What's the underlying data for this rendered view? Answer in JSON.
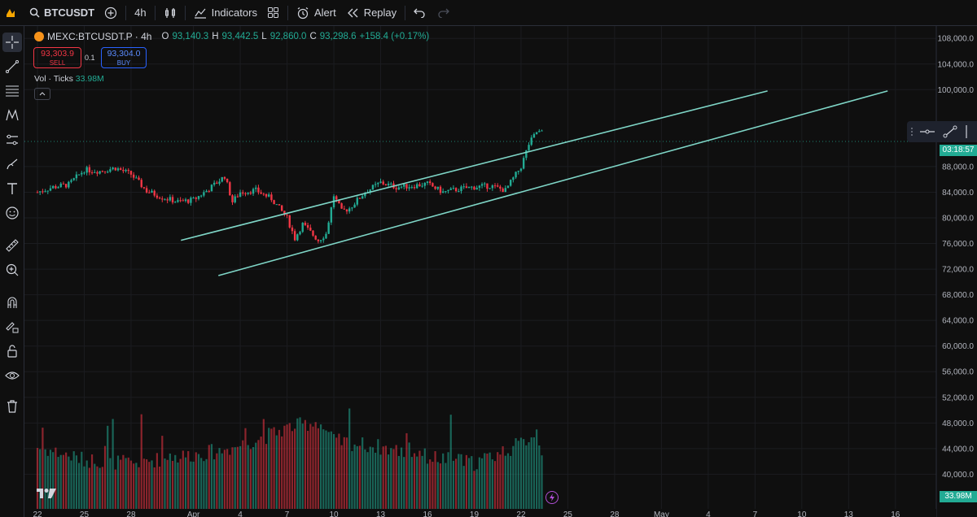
{
  "topbar": {
    "symbol": "BTCUSDT",
    "interval": "4h",
    "indicators_label": "Indicators",
    "alert_label": "Alert",
    "replay_label": "Replay"
  },
  "legend": {
    "title": "MEXC:BTCUSDT.P · 4h",
    "o_label": "O",
    "o_value": "93,140.3",
    "h_label": "H",
    "h_value": "93,442.5",
    "l_label": "L",
    "l_value": "92,860.0",
    "c_label": "C",
    "c_value": "93,298.6",
    "change": "+158.4 (+0.17%)"
  },
  "trade": {
    "sell_price": "93,303.9",
    "sell_label": "SELL",
    "qty": "0.1",
    "buy_price": "93,304.0",
    "buy_label": "BUY"
  },
  "volume": {
    "label": "Vol · Ticks",
    "value": "33.98M"
  },
  "price_axis": {
    "current_badge": "03:18:57",
    "volume_badge": "33.98M",
    "ticks": [
      {
        "label": "108,000.0",
        "price": 108000
      },
      {
        "label": "104,000.0",
        "price": 104000
      },
      {
        "label": "100,000.0",
        "price": 100000
      },
      {
        "label": "88,000.0",
        "price": 88000
      },
      {
        "label": "84,000.0",
        "price": 84000
      },
      {
        "label": "80,000.0",
        "price": 80000
      },
      {
        "label": "76,000.0",
        "price": 76000
      },
      {
        "label": "72,000.0",
        "price": 72000
      },
      {
        "label": "68,000.0",
        "price": 68000
      },
      {
        "label": "64,000.0",
        "price": 64000
      },
      {
        "label": "60,000.0",
        "price": 60000
      },
      {
        "label": "56,000.0",
        "price": 56000
      },
      {
        "label": "52,000.0",
        "price": 52000
      },
      {
        "label": "48,000.0",
        "price": 48000
      },
      {
        "label": "44,000.0",
        "price": 44000
      },
      {
        "label": "40,000.0",
        "price": 40000
      }
    ]
  },
  "time_axis": {
    "labels": [
      {
        "label": "22",
        "day": 0
      },
      {
        "label": "25",
        "day": 3
      },
      {
        "label": "28",
        "day": 6
      },
      {
        "label": "Apr",
        "day": 10
      },
      {
        "label": "4",
        "day": 13
      },
      {
        "label": "7",
        "day": 16
      },
      {
        "label": "10",
        "day": 19
      },
      {
        "label": "13",
        "day": 22
      },
      {
        "label": "16",
        "day": 25
      },
      {
        "label": "19",
        "day": 28
      },
      {
        "label": "22",
        "day": 31
      },
      {
        "label": "25",
        "day": 34
      },
      {
        "label": "28",
        "day": 37
      },
      {
        "label": "May",
        "day": 40
      },
      {
        "label": "4",
        "day": 43
      },
      {
        "label": "7",
        "day": 46
      },
      {
        "label": "10",
        "day": 49
      },
      {
        "label": "13",
        "day": 52
      },
      {
        "label": "16",
        "day": 55
      }
    ]
  },
  "chart_data": {
    "type": "candlestick",
    "symbol": "MEXC:BTCUSDT.P",
    "timeframe": "4h",
    "current_price": 93298.6,
    "price_path": [
      [
        0,
        84000
      ],
      [
        1,
        84800
      ],
      [
        2,
        85200
      ],
      [
        3,
        87500
      ],
      [
        4,
        87300
      ],
      [
        5,
        87800
      ],
      [
        6,
        86800
      ],
      [
        7,
        84200
      ],
      [
        8,
        83200
      ],
      [
        9,
        82500
      ],
      [
        10,
        82800
      ],
      [
        11,
        84500
      ],
      [
        12,
        86500
      ],
      [
        12.5,
        82500
      ],
      [
        13,
        84000
      ],
      [
        14,
        84300
      ],
      [
        15,
        83000
      ],
      [
        16,
        80000
      ],
      [
        16.5,
        76800
      ],
      [
        17,
        79000
      ],
      [
        18,
        76500
      ],
      [
        18.5,
        77500
      ],
      [
        19,
        83500
      ],
      [
        19.5,
        81000
      ],
      [
        20,
        81500
      ],
      [
        21,
        84000
      ],
      [
        22,
        85500
      ],
      [
        23,
        84800
      ],
      [
        24,
        85000
      ],
      [
        25,
        85300
      ],
      [
        26,
        84000
      ],
      [
        27,
        84500
      ],
      [
        28,
        84800
      ],
      [
        29,
        85000
      ],
      [
        30,
        84300
      ],
      [
        31,
        88000
      ],
      [
        31.5,
        91500
      ],
      [
        32,
        93400
      ],
      [
        32.4,
        93300
      ]
    ],
    "volume_path": [
      [
        0,
        43000
      ],
      [
        3,
        41000
      ],
      [
        6,
        40500
      ],
      [
        9,
        41500
      ],
      [
        12,
        42500
      ],
      [
        15,
        45000
      ],
      [
        16,
        46000
      ],
      [
        18,
        47000
      ],
      [
        19,
        44000
      ],
      [
        22,
        43000
      ],
      [
        25,
        41500
      ],
      [
        28,
        40500
      ],
      [
        31,
        43500
      ],
      [
        32,
        45500
      ],
      [
        32.4,
        42000
      ]
    ],
    "trendlines": [
      {
        "name": "upper-channel",
        "start": [
          9.2,
          76500
        ],
        "end": [
          46.8,
          99800
        ]
      },
      {
        "name": "lower-channel",
        "start": [
          11.6,
          71000
        ],
        "end": [
          54.5,
          99800
        ]
      }
    ]
  },
  "colors": {
    "up": "#22ab94",
    "down": "#f23645",
    "channel": "#7fd6c7",
    "background": "#0f0f0f",
    "grid": "#1b1c20",
    "text": "#d1d4dc"
  }
}
